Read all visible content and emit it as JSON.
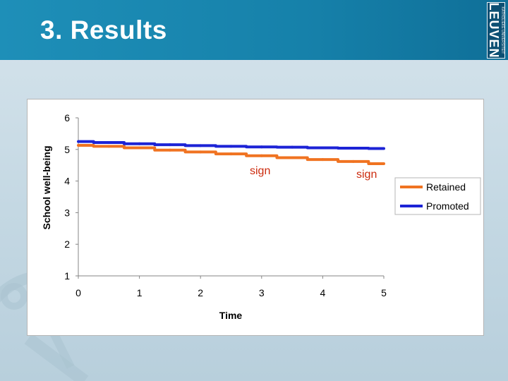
{
  "slide": {
    "title": "3. Results"
  },
  "logo": {
    "small_text": "KATHOLIEKE UNIVERSITEIT",
    "big_text": "LEUVEN"
  },
  "colors": {
    "retained": "#f07321",
    "promoted": "#1c23d6",
    "header": "#1681aa"
  },
  "annotations": [
    "sign",
    "sign"
  ],
  "chart_data": {
    "type": "line",
    "title": "",
    "xlabel": "Time",
    "ylabel": "School well-being",
    "xlim": [
      0,
      5
    ],
    "ylim": [
      1,
      6
    ],
    "xticks": [
      "0",
      "1",
      "2",
      "3",
      "4",
      "5"
    ],
    "yticks": [
      "1",
      "2",
      "3",
      "4",
      "5",
      "6"
    ],
    "grid": false,
    "legend_position": "right",
    "x": [
      0,
      0.5,
      1,
      1.5,
      2,
      2.5,
      3,
      3.5,
      4,
      4.5,
      5
    ],
    "series": [
      {
        "name": "Retained",
        "color": "#f07321",
        "values": [
          5.13,
          5.1,
          5.05,
          4.98,
          4.92,
          4.86,
          4.8,
          4.74,
          4.68,
          4.62,
          4.55
        ]
      },
      {
        "name": "Promoted",
        "color": "#1c23d6",
        "values": [
          5.25,
          5.22,
          5.18,
          5.15,
          5.12,
          5.1,
          5.08,
          5.07,
          5.05,
          5.04,
          5.03
        ]
      }
    ]
  }
}
